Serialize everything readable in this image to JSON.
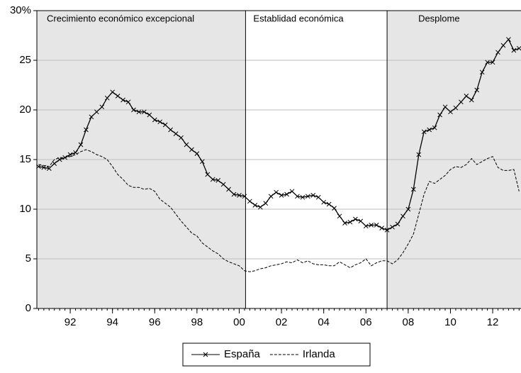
{
  "chart_data": {
    "type": "line",
    "periods": [
      {
        "label": "Crecimiento económico excepcional",
        "start": 1990.42,
        "end": 2000.3,
        "shaded": true
      },
      {
        "label": "Establidad económica",
        "start": 2000.3,
        "end": 2007.0,
        "shaded": false
      },
      {
        "label": "Desplome",
        "start": 2007.0,
        "end": 2013.34,
        "shaded": true
      }
    ],
    "x": [
      1990.5,
      1990.75,
      1991,
      1991.25,
      1991.5,
      1991.75,
      1992,
      1992.25,
      1992.5,
      1992.75,
      1993,
      1993.25,
      1993.5,
      1993.75,
      1994,
      1994.25,
      1994.5,
      1994.75,
      1995,
      1995.25,
      1995.5,
      1995.75,
      1996,
      1996.25,
      1996.5,
      1996.75,
      1997,
      1997.25,
      1997.5,
      1997.75,
      1998,
      1998.25,
      1998.5,
      1998.75,
      1999,
      1999.25,
      1999.5,
      1999.75,
      2000,
      2000.25,
      2000.5,
      2000.75,
      2001,
      2001.25,
      2001.5,
      2001.75,
      2002,
      2002.25,
      2002.5,
      2002.75,
      2003,
      2003.25,
      2003.5,
      2003.75,
      2004,
      2004.25,
      2004.5,
      2004.75,
      2005,
      2005.25,
      2005.5,
      2005.75,
      2006,
      2006.25,
      2006.5,
      2006.75,
      2007,
      2007.25,
      2007.5,
      2007.75,
      2008,
      2008.25,
      2008.5,
      2008.75,
      2009,
      2009.25,
      2009.5,
      2009.75,
      2010,
      2010.25,
      2010.5,
      2010.75,
      2011,
      2011.25,
      2011.5,
      2011.75,
      2012,
      2012.25,
      2012.5,
      2012.75,
      2013,
      2013.25
    ],
    "series": [
      {
        "name": "España",
        "color": "#000000",
        "marker": "x",
        "dash": false,
        "values": [
          14.3,
          14.2,
          14.1,
          14.6,
          15.0,
          15.2,
          15.5,
          15.7,
          16.5,
          18.0,
          19.3,
          19.8,
          20.3,
          21.2,
          21.8,
          21.4,
          21.0,
          20.8,
          20.0,
          19.8,
          19.8,
          19.5,
          19.0,
          18.8,
          18.5,
          18.0,
          17.6,
          17.2,
          16.5,
          16.0,
          15.6,
          14.8,
          13.5,
          13.0,
          12.9,
          12.5,
          12.0,
          11.5,
          11.4,
          11.3,
          10.8,
          10.4,
          10.2,
          10.6,
          11.3,
          11.7,
          11.4,
          11.5,
          11.8,
          11.3,
          11.2,
          11.3,
          11.4,
          11.2,
          10.7,
          10.5,
          10.1,
          9.3,
          8.6,
          8.7,
          9.0,
          8.8,
          8.3,
          8.4,
          8.4,
          8.1,
          7.9,
          8.2,
          8.5,
          9.3,
          10.0,
          12.0,
          15.5,
          17.8,
          18.0,
          18.2,
          19.5,
          20.3,
          19.8,
          20.2,
          20.8,
          21.4,
          21.0,
          22.0,
          23.8,
          24.8,
          24.8,
          25.8,
          26.5,
          27.1,
          26.0,
          26.2
        ]
      },
      {
        "name": "Irlanda",
        "color": "#000000",
        "marker": "none",
        "dash": true,
        "values": [
          14.5,
          14.4,
          14.3,
          15.0,
          15.2,
          15.2,
          15.3,
          15.5,
          15.8,
          16.0,
          15.8,
          15.5,
          15.3,
          15.0,
          14.3,
          13.5,
          13.0,
          12.4,
          12.2,
          12.2,
          12.0,
          12.1,
          11.8,
          11.0,
          10.6,
          10.2,
          9.5,
          8.8,
          8.2,
          7.6,
          7.3,
          6.6,
          6.2,
          5.8,
          5.5,
          5.0,
          4.7,
          4.5,
          4.3,
          3.8,
          3.7,
          3.8,
          4.0,
          4.1,
          4.3,
          4.4,
          4.5,
          4.7,
          4.6,
          4.9,
          4.6,
          4.8,
          4.5,
          4.4,
          4.4,
          4.3,
          4.3,
          4.7,
          4.4,
          4.1,
          4.4,
          4.6,
          5.0,
          4.3,
          4.6,
          4.8,
          4.8,
          4.5,
          4.9,
          5.6,
          6.5,
          7.5,
          9.5,
          11.5,
          12.8,
          12.6,
          13.0,
          13.4,
          14.0,
          14.3,
          14.2,
          14.5,
          15.1,
          14.5,
          14.8,
          15.1,
          15.3,
          14.2,
          13.9,
          13.9,
          14.0,
          11.8
        ]
      }
    ],
    "xlim": [
      1990.42,
      2013.34
    ],
    "xticks": [
      {
        "value": 1992,
        "label": "92"
      },
      {
        "value": 1994,
        "label": "94"
      },
      {
        "value": 1996,
        "label": "96"
      },
      {
        "value": 1998,
        "label": "98"
      },
      {
        "value": 2000,
        "label": "00"
      },
      {
        "value": 2002,
        "label": "02"
      },
      {
        "value": 2004,
        "label": "04"
      },
      {
        "value": 2006,
        "label": "06"
      },
      {
        "value": 2008,
        "label": "08"
      },
      {
        "value": 2010,
        "label": "10"
      },
      {
        "value": 2012,
        "label": "12"
      }
    ],
    "ylim": [
      0,
      30
    ],
    "yticks": [
      0,
      5,
      10,
      15,
      20,
      25,
      {
        "value": 30,
        "label": "30%"
      }
    ],
    "grid": true,
    "legend": "bottom"
  }
}
